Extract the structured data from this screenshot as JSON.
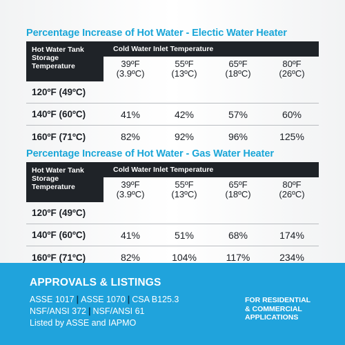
{
  "tables": [
    {
      "title": "Percentage Increase of Hot Water - Electic Water Heater",
      "row_header": [
        "Hot Water Tank",
        "Storage",
        "Temperature"
      ],
      "col_header_title": "Cold Water Inlet Temperature",
      "columns": [
        {
          "f": "39ºF",
          "c": "(3.9ºC)"
        },
        {
          "f": "55ºF",
          "c": "(13ºC)"
        },
        {
          "f": "65ºF",
          "c": "(18ºC)"
        },
        {
          "f": "80ºF",
          "c": "(26ºC)"
        }
      ],
      "rows": [
        {
          "label": "120ºF (49ºC)",
          "values": [
            "",
            "",
            "",
            ""
          ]
        },
        {
          "label": "140ºF (60ºC)",
          "values": [
            "41%",
            "42%",
            "57%",
            "60%"
          ]
        },
        {
          "label": "160ºF (71ºC)",
          "values": [
            "82%",
            "92%",
            "96%",
            "125%"
          ]
        }
      ]
    },
    {
      "title": "Percentage Increase of Hot Water - Gas Water Heater",
      "row_header": [
        "Hot Water Tank",
        "Storage",
        "Temperature"
      ],
      "col_header_title": "Cold Water Inlet Temperature",
      "columns": [
        {
          "f": "39ºF",
          "c": "(3.9ºC)"
        },
        {
          "f": "55ºF",
          "c": "(13ºC)"
        },
        {
          "f": "65ºF",
          "c": "(18ºC)"
        },
        {
          "f": "80ºF",
          "c": "(26ºC)"
        }
      ],
      "rows": [
        {
          "label": "120ºF (49ºC)",
          "values": [
            "",
            "",
            "",
            ""
          ]
        },
        {
          "label": "140ºF (60ºC)",
          "values": [
            "41%",
            "51%",
            "68%",
            "174%"
          ]
        },
        {
          "label": "160ºF (71ºC)",
          "values": [
            "82%",
            "104%",
            "117%",
            "234%"
          ]
        }
      ]
    }
  ],
  "approvals": {
    "title": "APPROVALS & LISTINGS",
    "line1": [
      "ASSE 1017",
      "ASSE 1070",
      "CSA B125.3"
    ],
    "line2": [
      "NSF/ANSI 372",
      "NSF/ANSI 61"
    ],
    "line3": "Listed by ASSE and IAPMO",
    "separator": "|",
    "applications": [
      "FOR RESIDENTIAL",
      "& COMMERCIAL",
      "APPLICATIONS"
    ]
  },
  "colors": {
    "title_blue": "#1aa6d8",
    "header_dark": "#1f2328",
    "banner_blue": "#20a3dc"
  }
}
